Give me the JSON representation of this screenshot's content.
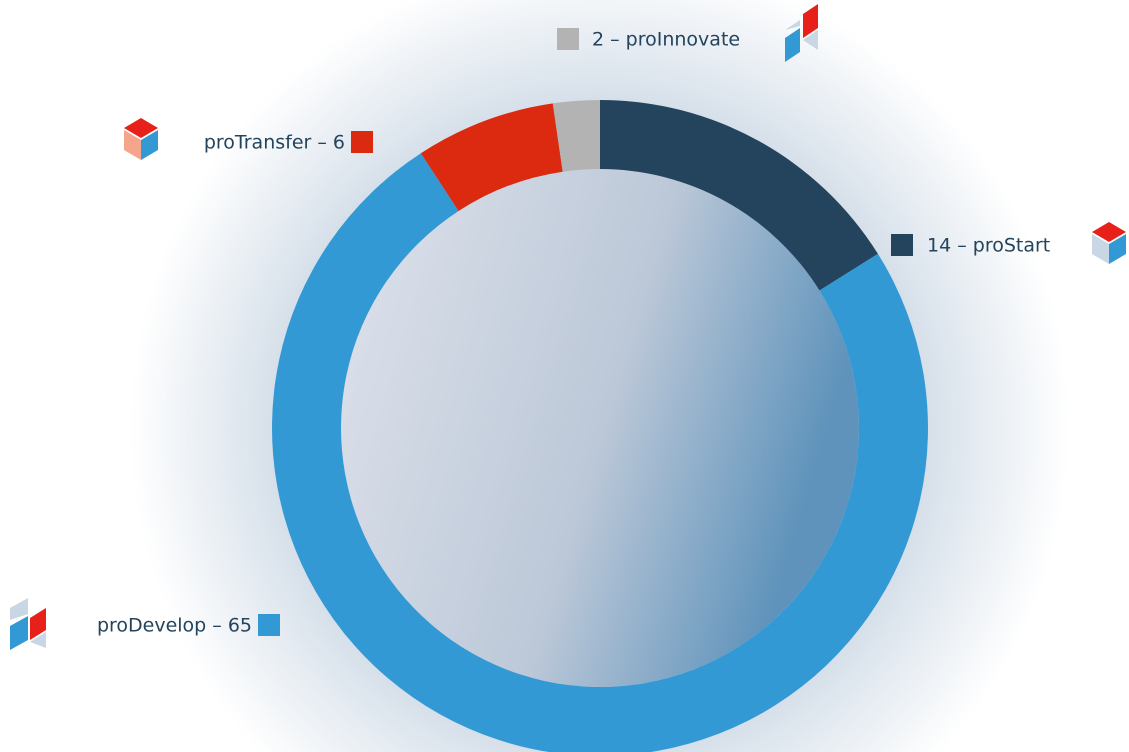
{
  "chart_data": {
    "type": "donut",
    "values": [
      14,
      65,
      6,
      2
    ],
    "value_labels": [
      "14 – proStart",
      "proDevelop – 65",
      "proTransfer – 6",
      "2 – proInnovate"
    ],
    "colors": [
      "#23445c",
      "#3399d4",
      "#dc2a10",
      "#b3b3b3"
    ]
  }
}
